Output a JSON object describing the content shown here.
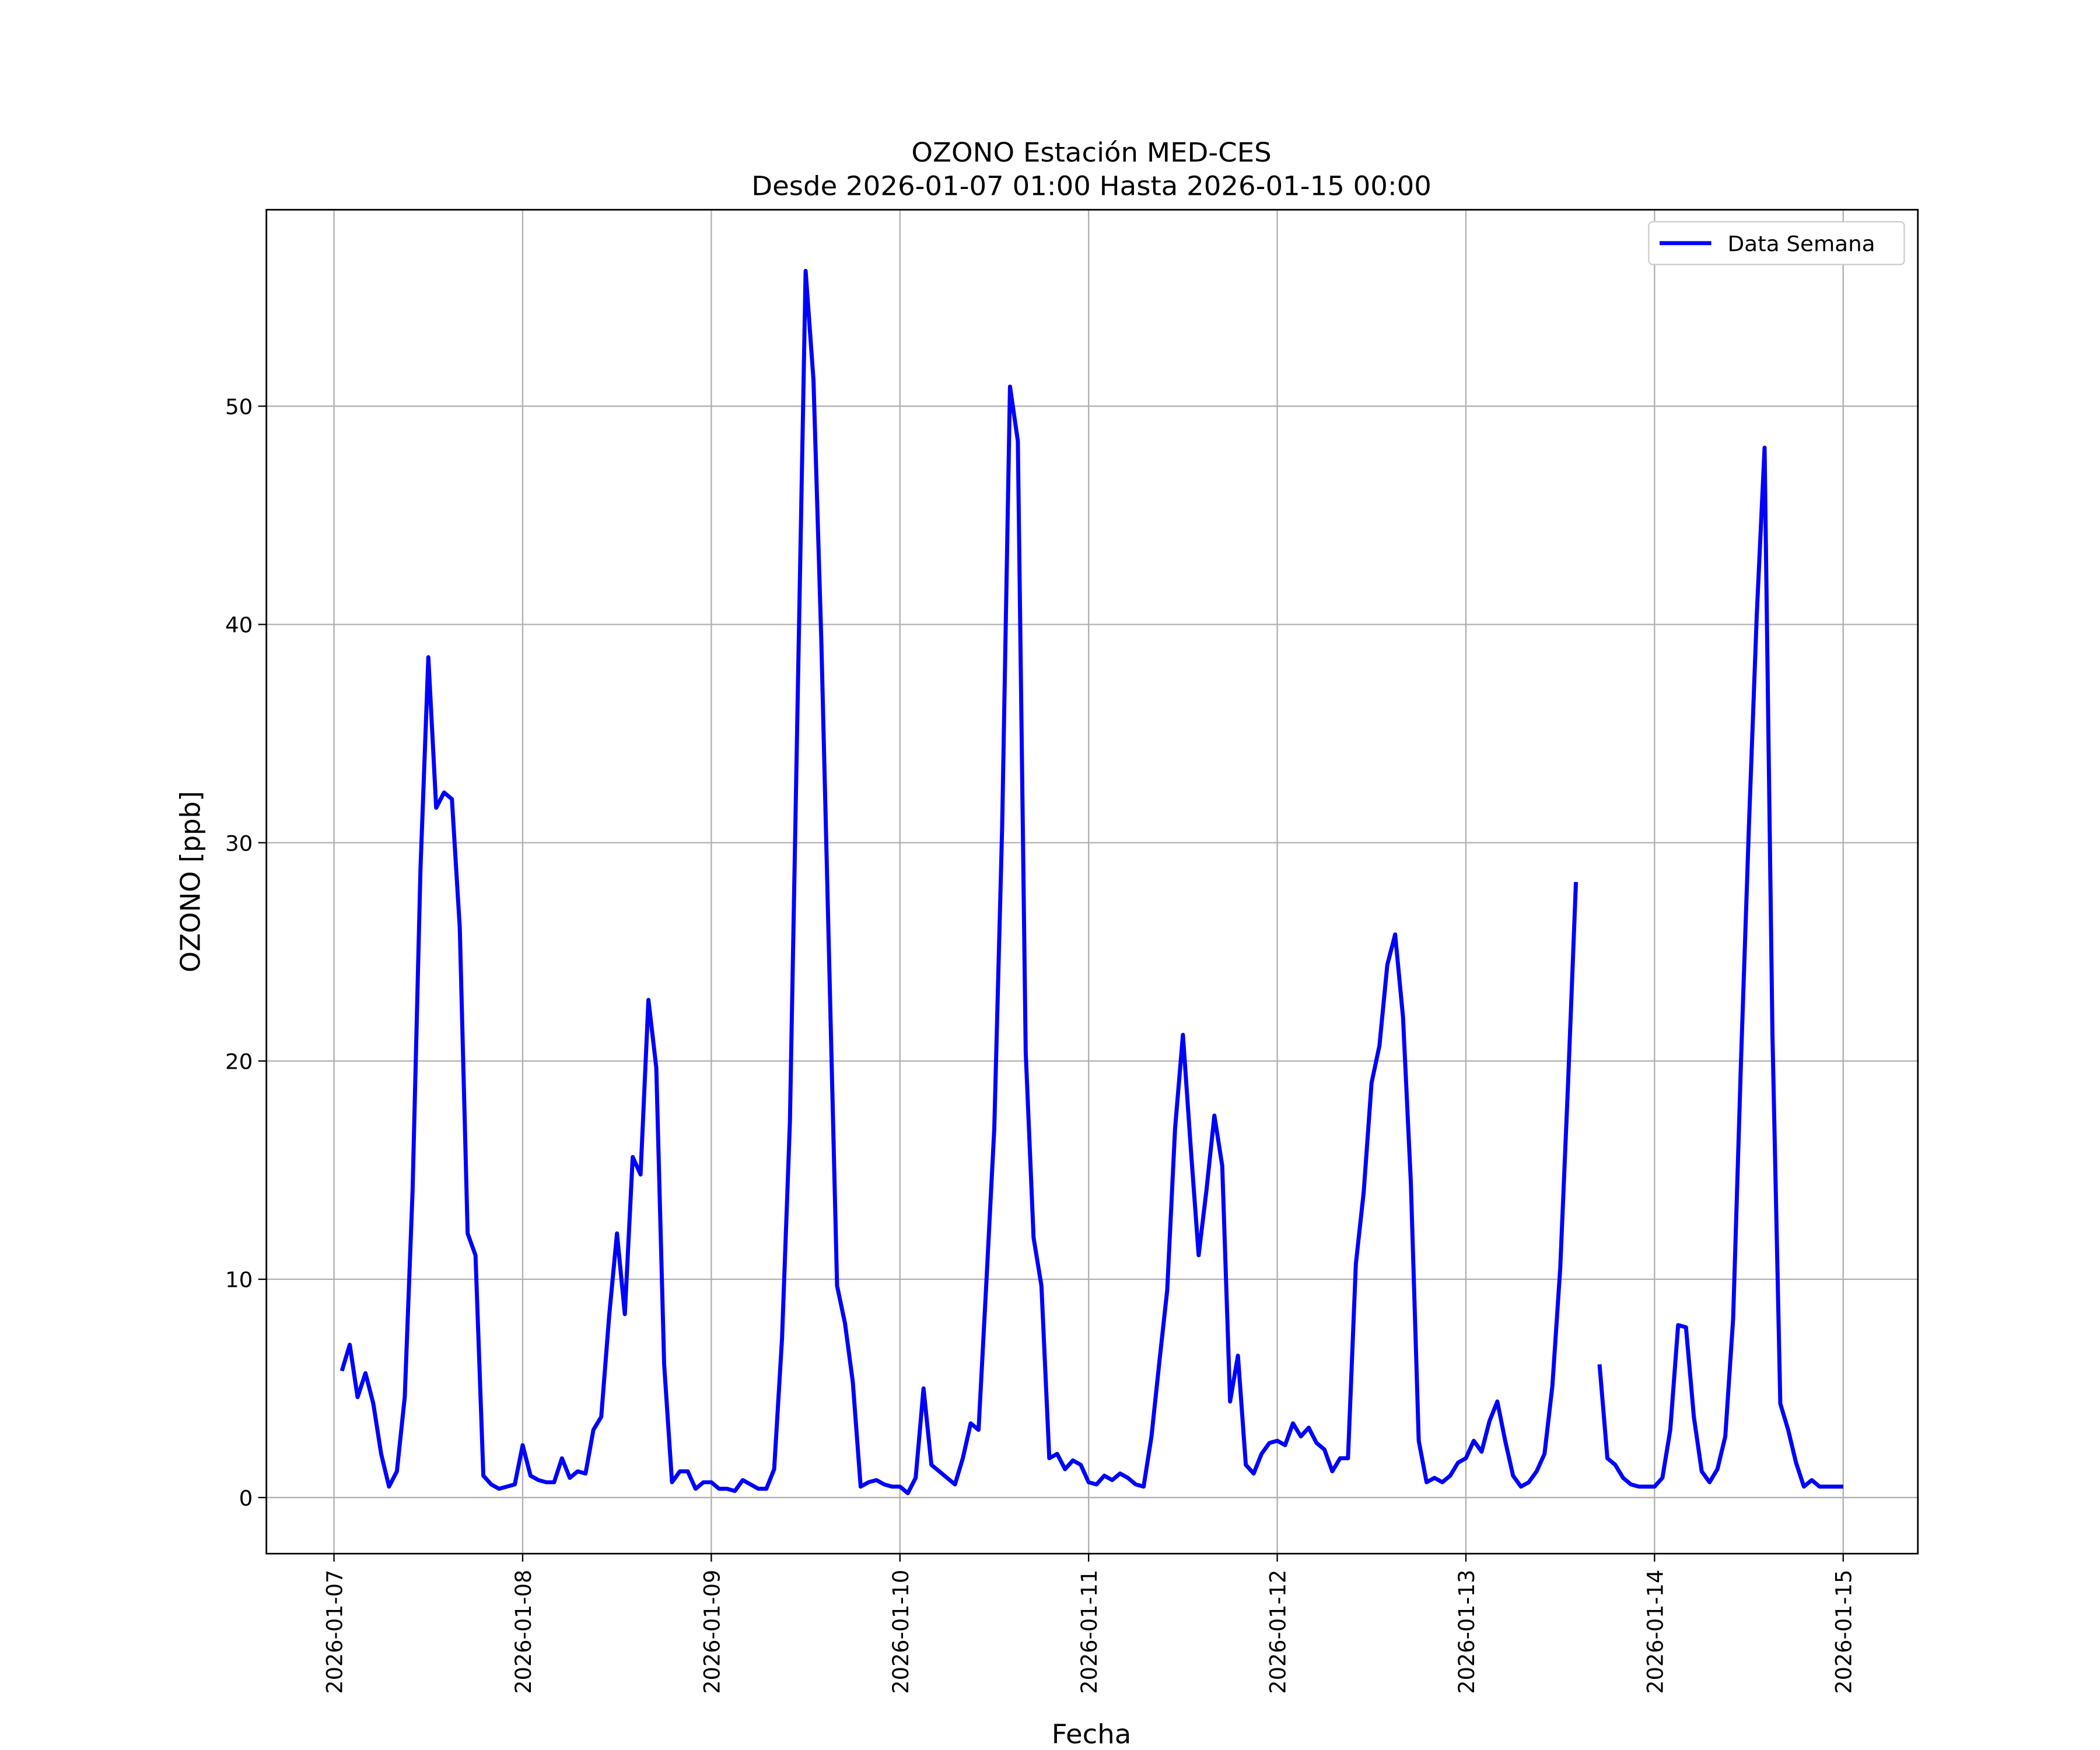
{
  "chart_data": {
    "type": "line",
    "title": "OZONO Estación MED-CES",
    "subtitle": "Desde 2026-01-07 01:00 Hasta 2026-01-15 00:00",
    "x_label": "Fecha",
    "y_label": "OZONO [ppb]",
    "grid": true,
    "legend": "upper right",
    "xlim": [
      "2026-01-06 15:24",
      "2026-01-15 09:30"
    ],
    "xticks": [
      "2026-01-07",
      "2026-01-08",
      "2026-01-09",
      "2026-01-10",
      "2026-01-11",
      "2026-01-12",
      "2026-01-13",
      "2026-01-14",
      "2026-01-15"
    ],
    "ylim": [
      -2.57,
      59.0
    ],
    "yticks": [
      0,
      10,
      20,
      30,
      40,
      50
    ],
    "x": [
      "2026-01-07 01:00",
      "2026-01-07 02:00",
      "2026-01-07 03:00",
      "2026-01-07 04:00",
      "2026-01-07 05:00",
      "2026-01-07 06:00",
      "2026-01-07 07:00",
      "2026-01-07 08:00",
      "2026-01-07 09:00",
      "2026-01-07 10:00",
      "2026-01-07 11:00",
      "2026-01-07 12:00",
      "2026-01-07 13:00",
      "2026-01-07 14:00",
      "2026-01-07 15:00",
      "2026-01-07 16:00",
      "2026-01-07 17:00",
      "2026-01-07 18:00",
      "2026-01-07 19:00",
      "2026-01-07 20:00",
      "2026-01-07 21:00",
      "2026-01-07 22:00",
      "2026-01-07 23:00",
      "2026-01-08 00:00",
      "2026-01-08 01:00",
      "2026-01-08 02:00",
      "2026-01-08 03:00",
      "2026-01-08 04:00",
      "2026-01-08 05:00",
      "2026-01-08 06:00",
      "2026-01-08 07:00",
      "2026-01-08 08:00",
      "2026-01-08 09:00",
      "2026-01-08 10:00",
      "2026-01-08 11:00",
      "2026-01-08 12:00",
      "2026-01-08 13:00",
      "2026-01-08 14:00",
      "2026-01-08 15:00",
      "2026-01-08 16:00",
      "2026-01-08 17:00",
      "2026-01-08 18:00",
      "2026-01-08 19:00",
      "2026-01-08 20:00",
      "2026-01-08 21:00",
      "2026-01-08 22:00",
      "2026-01-08 23:00",
      "2026-01-09 00:00",
      "2026-01-09 01:00",
      "2026-01-09 02:00",
      "2026-01-09 03:00",
      "2026-01-09 04:00",
      "2026-01-09 05:00",
      "2026-01-09 06:00",
      "2026-01-09 07:00",
      "2026-01-09 08:00",
      "2026-01-09 09:00",
      "2026-01-09 10:00",
      "2026-01-09 11:00",
      "2026-01-09 12:00",
      "2026-01-09 13:00",
      "2026-01-09 14:00",
      "2026-01-09 15:00",
      "2026-01-09 16:00",
      "2026-01-09 17:00",
      "2026-01-09 18:00",
      "2026-01-09 19:00",
      "2026-01-09 20:00",
      "2026-01-09 21:00",
      "2026-01-09 22:00",
      "2026-01-09 23:00",
      "2026-01-10 00:00",
      "2026-01-10 01:00",
      "2026-01-10 02:00",
      "2026-01-10 03:00",
      "2026-01-10 04:00",
      "2026-01-10 05:00",
      "2026-01-10 06:00",
      "2026-01-10 07:00",
      "2026-01-10 08:00",
      "2026-01-10 09:00",
      "2026-01-10 10:00",
      "2026-01-10 11:00",
      "2026-01-10 12:00",
      "2026-01-10 13:00",
      "2026-01-10 14:00",
      "2026-01-10 15:00",
      "2026-01-10 16:00",
      "2026-01-10 17:00",
      "2026-01-10 18:00",
      "2026-01-10 19:00",
      "2026-01-10 20:00",
      "2026-01-10 21:00",
      "2026-01-10 22:00",
      "2026-01-10 23:00",
      "2026-01-11 00:00",
      "2026-01-11 01:00",
      "2026-01-11 02:00",
      "2026-01-11 03:00",
      "2026-01-11 04:00",
      "2026-01-11 05:00",
      "2026-01-11 06:00",
      "2026-01-11 07:00",
      "2026-01-11 08:00",
      "2026-01-11 09:00",
      "2026-01-11 10:00",
      "2026-01-11 11:00",
      "2026-01-11 12:00",
      "2026-01-11 13:00",
      "2026-01-11 14:00",
      "2026-01-11 15:00",
      "2026-01-11 16:00",
      "2026-01-11 17:00",
      "2026-01-11 18:00",
      "2026-01-11 19:00",
      "2026-01-11 20:00",
      "2026-01-11 21:00",
      "2026-01-11 22:00",
      "2026-01-11 23:00",
      "2026-01-12 00:00",
      "2026-01-12 01:00",
      "2026-01-12 02:00",
      "2026-01-12 03:00",
      "2026-01-12 04:00",
      "2026-01-12 05:00",
      "2026-01-12 06:00",
      "2026-01-12 07:00",
      "2026-01-12 08:00",
      "2026-01-12 09:00",
      "2026-01-12 10:00",
      "2026-01-12 11:00",
      "2026-01-12 12:00",
      "2026-01-12 13:00",
      "2026-01-12 14:00",
      "2026-01-12 15:00",
      "2026-01-12 16:00",
      "2026-01-12 17:00",
      "2026-01-12 18:00",
      "2026-01-12 19:00",
      "2026-01-12 20:00",
      "2026-01-12 21:00",
      "2026-01-12 22:00",
      "2026-01-12 23:00",
      "2026-01-13 00:00",
      "2026-01-13 01:00",
      "2026-01-13 02:00",
      "2026-01-13 03:00",
      "2026-01-13 04:00",
      "2026-01-13 05:00",
      "2026-01-13 06:00",
      "2026-01-13 07:00",
      "2026-01-13 08:00",
      "2026-01-13 09:00",
      "2026-01-13 10:00",
      "2026-01-13 11:00",
      "2026-01-13 12:00",
      "2026-01-13 13:00",
      "2026-01-13 14:00",
      "2026-01-13 15:00",
      "2026-01-13 16:00",
      "2026-01-13 17:00",
      "2026-01-13 18:00",
      "2026-01-13 19:00",
      "2026-01-13 20:00",
      "2026-01-13 21:00",
      "2026-01-13 22:00",
      "2026-01-13 23:00",
      "2026-01-14 00:00",
      "2026-01-14 01:00",
      "2026-01-14 02:00",
      "2026-01-14 03:00",
      "2026-01-14 04:00",
      "2026-01-14 05:00",
      "2026-01-14 06:00",
      "2026-01-14 07:00",
      "2026-01-14 08:00",
      "2026-01-14 09:00",
      "2026-01-14 10:00",
      "2026-01-14 11:00",
      "2026-01-14 12:00",
      "2026-01-14 13:00",
      "2026-01-14 14:00",
      "2026-01-14 15:00",
      "2026-01-14 16:00",
      "2026-01-14 17:00",
      "2026-01-14 18:00",
      "2026-01-14 19:00",
      "2026-01-14 20:00",
      "2026-01-14 21:00",
      "2026-01-14 22:00",
      "2026-01-14 23:00",
      "2026-01-15 00:00"
    ],
    "series": [
      {
        "name": "Data Semana",
        "color": "#0000ff",
        "values": [
          5.8,
          7.0,
          4.6,
          5.7,
          4.3,
          2.0,
          0.5,
          1.2,
          4.6,
          14.1,
          28.8,
          38.5,
          31.6,
          32.3,
          32.0,
          26.1,
          12.1,
          11.1,
          1.0,
          0.6,
          0.4,
          0.5,
          0.6,
          2.4,
          1.0,
          0.8,
          0.7,
          0.7,
          1.8,
          0.9,
          1.2,
          1.1,
          3.1,
          3.7,
          8.3,
          12.1,
          8.4,
          15.6,
          14.8,
          22.8,
          19.7,
          6.1,
          0.7,
          1.2,
          1.2,
          0.4,
          0.7,
          0.7,
          0.4,
          0.4,
          0.3,
          0.8,
          0.6,
          0.4,
          0.4,
          1.3,
          7.3,
          17.2,
          36.8,
          56.2,
          51.2,
          39.2,
          24.5,
          9.7,
          8.0,
          5.3,
          0.5,
          0.7,
          0.8,
          0.6,
          0.5,
          0.5,
          0.2,
          0.9,
          5.0,
          1.5,
          1.2,
          0.9,
          0.6,
          1.8,
          3.4,
          3.1,
          9.9,
          16.9,
          30.7,
          50.9,
          48.4,
          20.4,
          11.9,
          9.7,
          1.8,
          2.0,
          1.3,
          1.7,
          1.5,
          0.7,
          0.6,
          1.0,
          0.8,
          1.1,
          0.9,
          0.6,
          0.5,
          2.8,
          6.2,
          9.5,
          16.9,
          21.2,
          16.0,
          11.1,
          14.1,
          17.5,
          15.2,
          4.4,
          6.5,
          1.5,
          1.1,
          2.0,
          2.5,
          2.6,
          2.4,
          3.4,
          2.8,
          3.2,
          2.5,
          2.2,
          1.2,
          1.8,
          1.8,
          10.7,
          14.0,
          19.0,
          20.7,
          24.4,
          25.8,
          22.0,
          14.4,
          2.6,
          0.7,
          0.9,
          0.7,
          1.0,
          1.6,
          1.8,
          2.6,
          2.1,
          3.5,
          4.4,
          2.6,
          1.0,
          0.5,
          0.7,
          1.2,
          2.0,
          5.1,
          10.5,
          19.0,
          28.2,
          null,
          null,
          6.1,
          1.8,
          1.5,
          0.9,
          0.6,
          0.5,
          0.5,
          0.5,
          0.9,
          3.1,
          7.9,
          7.8,
          3.7,
          1.2,
          0.7,
          1.3,
          2.8,
          8.2,
          20.0,
          30.7,
          40.4,
          48.1,
          21.2,
          4.3,
          3.1,
          1.6,
          0.5,
          0.8,
          0.5,
          0.5,
          0.5,
          0.5
        ]
      }
    ]
  }
}
